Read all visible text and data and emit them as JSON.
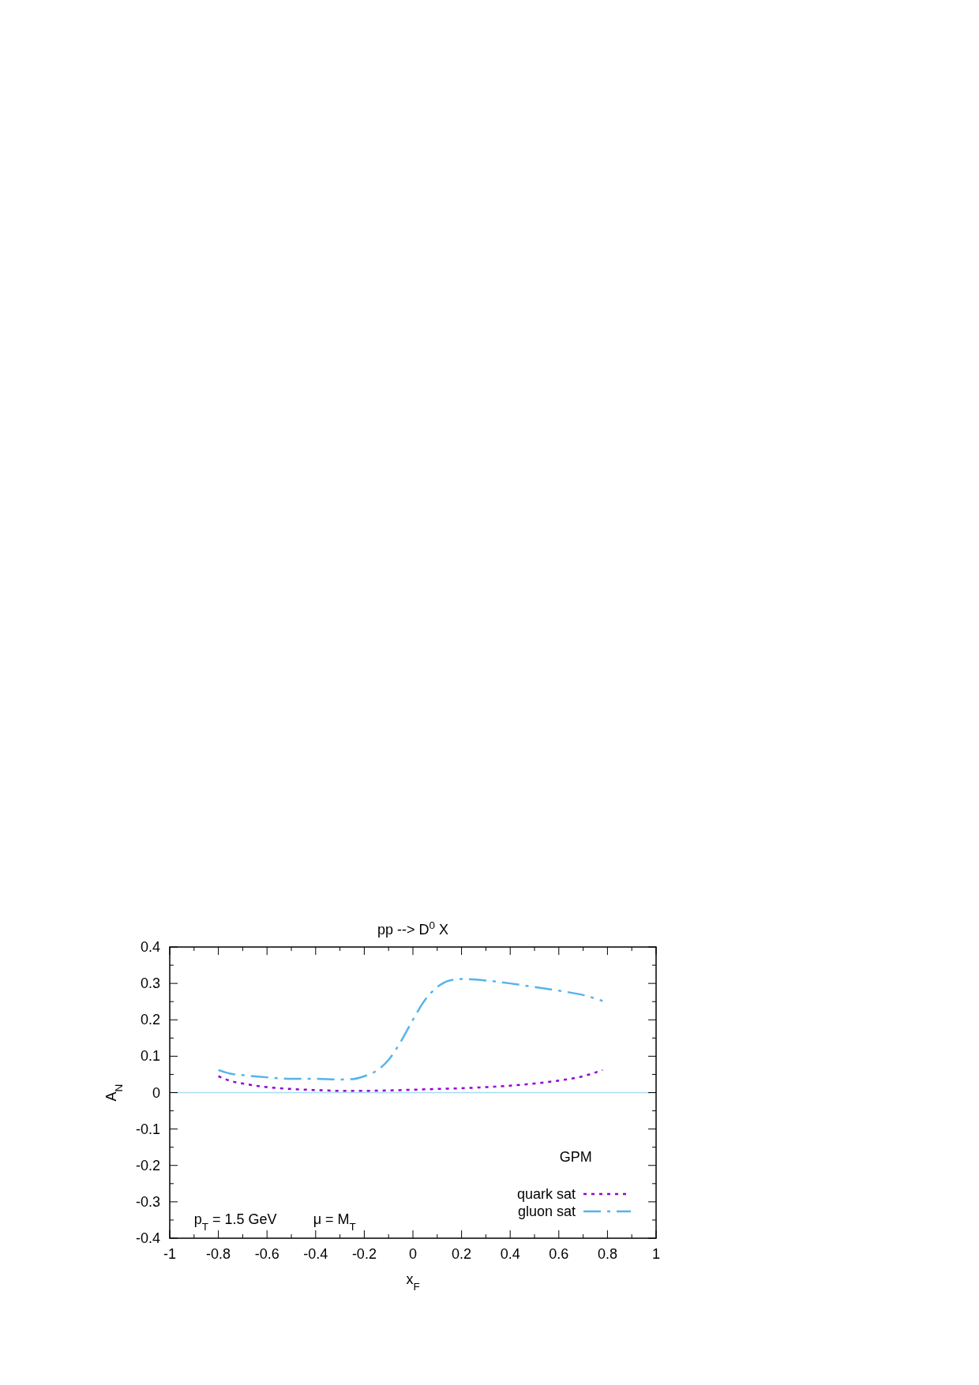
{
  "chart_data": {
    "type": "line",
    "title": "pp --> D$^{0}$ X",
    "xlabel": "x$_{F}$",
    "ylabel": "A$_{N}$",
    "annotations": [
      "p$_{T}$ = 1.5 GeV",
      "μ = M$_{T}$",
      "GPM"
    ],
    "xlim": [
      -1,
      1
    ],
    "xticks": [
      -1,
      -0.8,
      -0.6,
      -0.4,
      -0.2,
      0,
      0.2,
      0.4,
      0.6,
      0.8,
      1
    ],
    "ylim": [
      -0.4,
      0.4
    ],
    "yticks": [
      -0.4,
      -0.3,
      -0.2,
      -0.1,
      0,
      0.1,
      0.2,
      0.3,
      0.4
    ],
    "grid": false,
    "legend": "bottom right",
    "ref_lines": [
      {
        "axis": "y",
        "value": 0,
        "color": "#a8dcf0",
        "line_style": "solid"
      }
    ],
    "series": [
      {
        "name": "quark sat",
        "color": "#9400d3",
        "line_style": "dotted",
        "x": [
          -0.8,
          -0.75,
          -0.7,
          -0.6,
          -0.5,
          -0.4,
          -0.3,
          -0.2,
          -0.1,
          0,
          0.1,
          0.2,
          0.3,
          0.4,
          0.5,
          0.6,
          0.7,
          0.78
        ],
        "values": [
          0.045,
          0.032,
          0.025,
          0.015,
          0.01,
          0.007,
          0.005,
          0.005,
          0.006,
          0.008,
          0.01,
          0.012,
          0.015,
          0.019,
          0.025,
          0.033,
          0.045,
          0.062
        ]
      },
      {
        "name": "gluon sat",
        "color": "#56b4e9",
        "line_style": "dashdot",
        "x": [
          -0.8,
          -0.75,
          -0.7,
          -0.6,
          -0.5,
          -0.4,
          -0.3,
          -0.25,
          -0.2,
          -0.15,
          -0.1,
          -0.05,
          0,
          0.05,
          0.1,
          0.15,
          0.2,
          0.3,
          0.4,
          0.5,
          0.6,
          0.7,
          0.78
        ],
        "values": [
          0.062,
          0.052,
          0.048,
          0.042,
          0.038,
          0.038,
          0.036,
          0.037,
          0.045,
          0.06,
          0.09,
          0.14,
          0.2,
          0.255,
          0.29,
          0.308,
          0.312,
          0.308,
          0.3,
          0.29,
          0.28,
          0.268,
          0.252
        ]
      }
    ]
  }
}
